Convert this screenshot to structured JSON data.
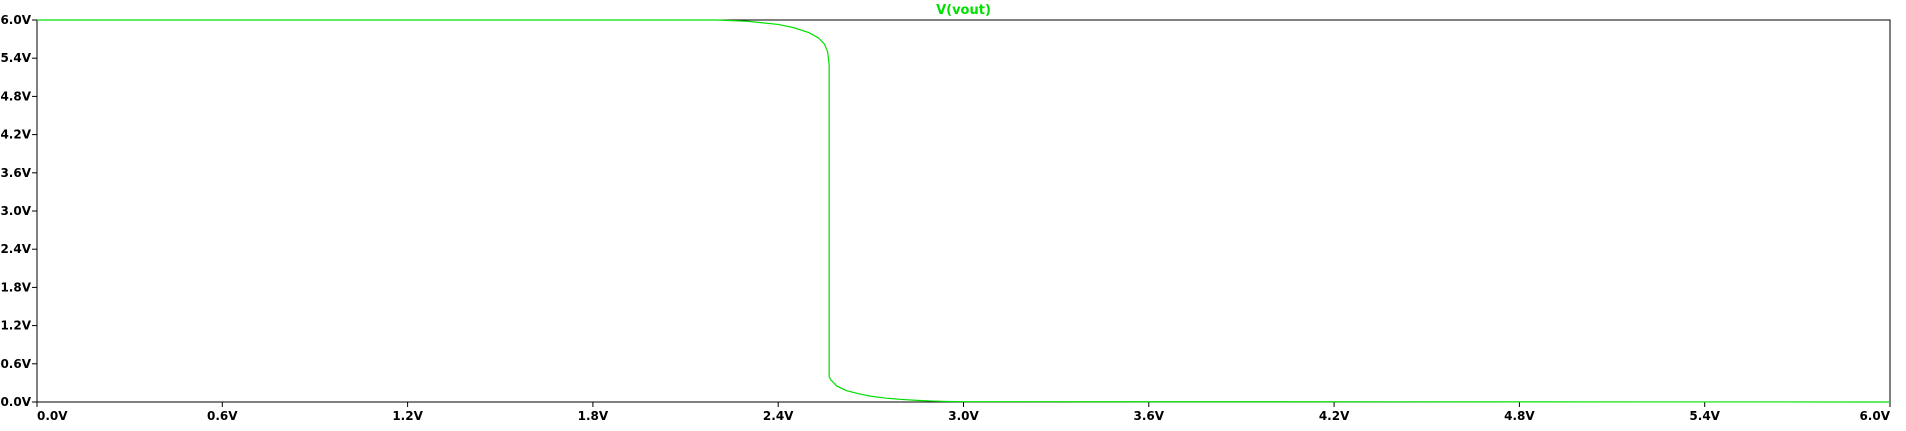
{
  "chart_data": {
    "type": "line",
    "title": "V(vout)",
    "xlabel": "",
    "ylabel": "",
    "xlim": [
      0.0,
      6.0
    ],
    "ylim": [
      0.0,
      6.0
    ],
    "x_ticks": [
      "0.0V",
      "0.6V",
      "1.2V",
      "1.8V",
      "2.4V",
      "3.0V",
      "3.6V",
      "4.2V",
      "4.8V",
      "5.4V",
      "6.0V"
    ],
    "y_ticks": [
      "6.0V",
      "5.4V",
      "4.8V",
      "4.2V",
      "3.6V",
      "3.0V",
      "2.4V",
      "1.8V",
      "1.2V",
      "0.6V",
      "0.0V"
    ],
    "grid": false,
    "series": [
      {
        "name": "V(vout)",
        "color": "#00e000",
        "x": [
          0.0,
          2.2,
          2.3,
          2.4,
          2.45,
          2.5,
          2.53,
          2.55,
          2.56,
          2.565,
          2.565,
          2.57,
          2.59,
          2.62,
          2.66,
          2.7,
          2.75,
          2.8,
          2.85,
          2.9,
          2.95,
          3.0,
          6.0
        ],
        "y": [
          6.0,
          6.0,
          5.98,
          5.93,
          5.88,
          5.8,
          5.72,
          5.62,
          5.5,
          5.3,
          0.4,
          0.35,
          0.25,
          0.18,
          0.13,
          0.09,
          0.06,
          0.04,
          0.025,
          0.015,
          0.008,
          0.005,
          0.0
        ]
      }
    ]
  }
}
